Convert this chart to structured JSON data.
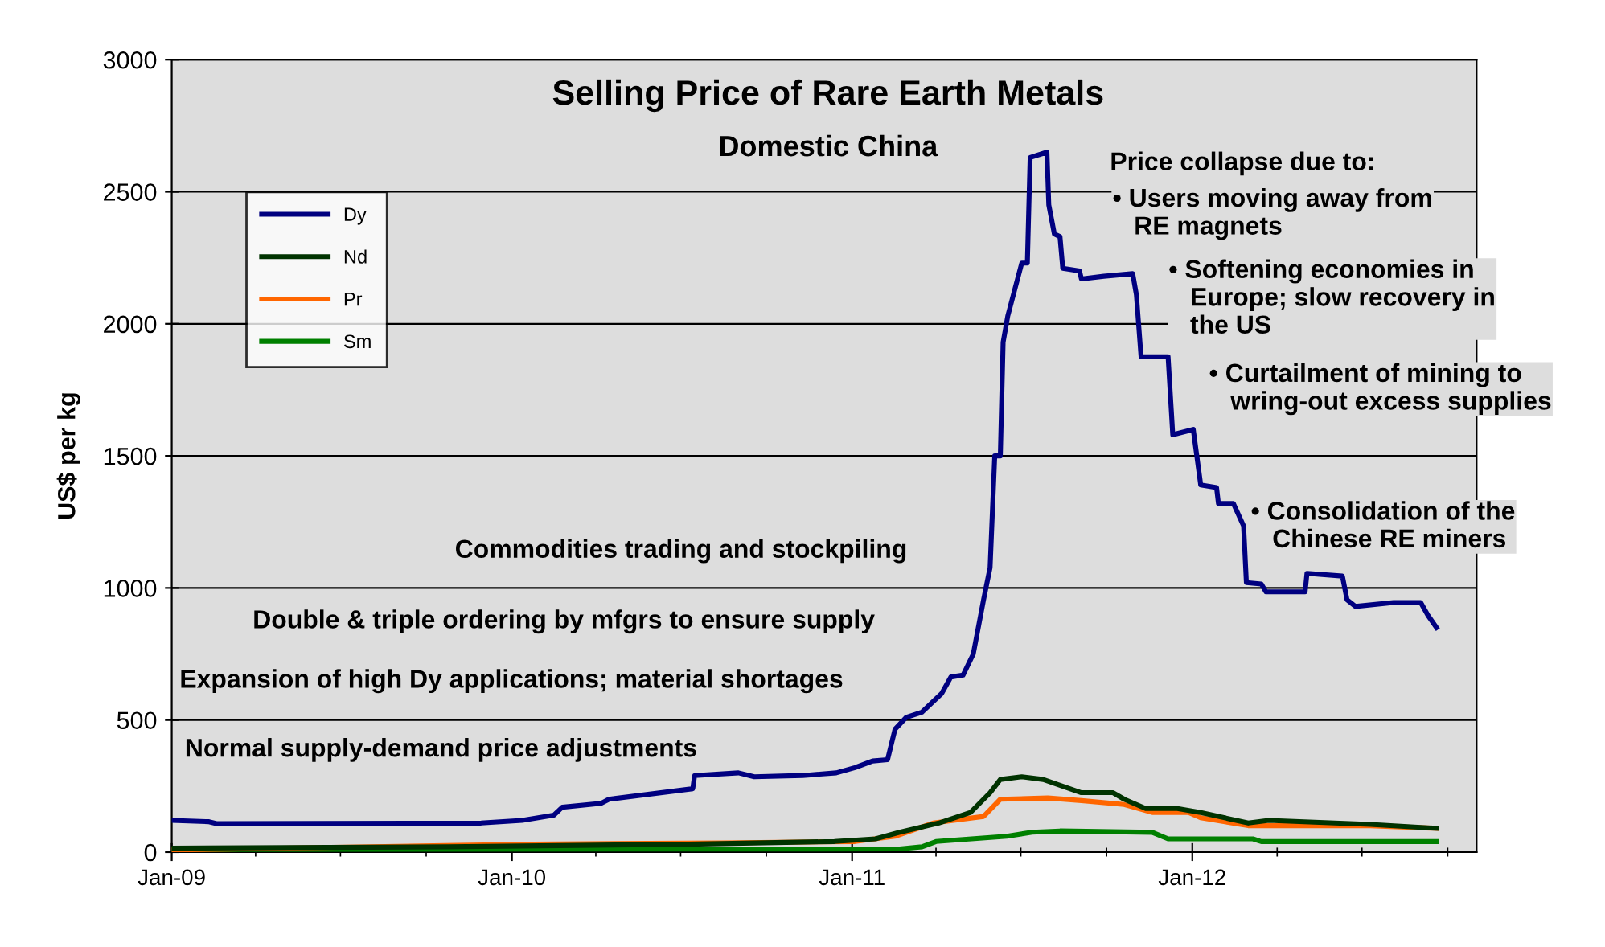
{
  "chart_data": {
    "type": "line",
    "title": "Selling Price of Rare Earth Metals",
    "subtitle": "Domestic China",
    "ylabel": "US$ per kg",
    "annotations": [
      "Price collapse due to:",
      "• Users moving away from\n   RE magnets",
      "• Softening economies in\n   Europe; slow recovery in\n   the US",
      "• Curtailment of mining to\n   wring-out excess supplies",
      "• Consolidation of the\n   Chinese RE miners",
      "Commodities trading and stockpiling",
      "Double & triple ordering by mfgrs to ensure supply",
      "Expansion of high Dy applications; material shortages",
      "Normal supply-demand price adjustments"
    ],
    "series": [
      {
        "name": "Dy",
        "color": "#000080",
        "x": [
          "2009-01-01",
          "2009-02-10",
          "2009-02-18",
          "2009-11-29",
          "2010-01-12",
          "2010-01-29",
          "2010-02-15",
          "2010-02-24",
          "2010-04-07",
          "2010-04-15",
          "2010-07-14",
          "2010-07-16",
          "2010-09-01",
          "2010-09-18",
          "2010-11-09",
          "2010-12-15",
          "2011-01-04",
          "2011-01-23",
          "2011-02-08",
          "2011-02-16",
          "2011-02-28",
          "2011-03-17",
          "2011-04-07",
          "2011-04-17",
          "2011-04-30",
          "2011-05-11",
          "2011-05-22",
          "2011-05-29",
          "2011-06-03",
          "2011-06-09",
          "2011-06-12",
          "2011-06-17",
          "2011-06-26",
          "2011-07-02",
          "2011-07-08",
          "2011-07-11",
          "2011-07-29",
          "2011-07-31",
          "2011-08-06",
          "2011-08-12",
          "2011-08-15",
          "2011-09-02",
          "2011-09-04",
          "2011-09-28",
          "2011-10-29",
          "2011-11-02",
          "2011-11-07",
          "2011-12-06",
          "2011-12-11",
          "2012-01-02",
          "2012-01-10",
          "2012-01-27",
          "2012-01-29",
          "2012-02-14",
          "2012-02-25",
          "2012-02-28",
          "2012-03-15",
          "2012-03-20",
          "2012-05-01",
          "2012-05-03",
          "2012-06-10",
          "2012-06-15",
          "2012-06-24",
          "2012-08-04",
          "2012-09-02",
          "2012-09-10",
          "2012-09-19"
        ],
        "values": [
          120,
          115,
          108,
          110,
          120,
          130,
          140,
          170,
          185,
          200,
          240,
          290,
          300,
          285,
          290,
          300,
          320,
          345,
          350,
          465,
          510,
          530,
          600,
          663,
          670,
          750,
          955,
          1077,
          1500,
          1500,
          1930,
          2030,
          2150,
          2230,
          2230,
          2630,
          2650,
          2450,
          2340,
          2330,
          2210,
          2200,
          2170,
          2180,
          2190,
          2110,
          1875,
          1875,
          1580,
          1600,
          1390,
          1380,
          1320,
          1320,
          1235,
          1020,
          1015,
          985,
          985,
          1055,
          1045,
          955,
          930,
          945,
          945,
          895,
          850
        ]
      },
      {
        "name": "Nd",
        "color": "#003300",
        "x": [
          "2009-01-01",
          "2009-10-25",
          "2010-07-10",
          "2010-12-13",
          "2011-01-26",
          "2011-02-21",
          "2011-04-04",
          "2011-05-08",
          "2011-05-29",
          "2011-06-09",
          "2011-07-02",
          "2011-07-25",
          "2011-09-04",
          "2011-10-08",
          "2011-10-20",
          "2011-11-12",
          "2011-12-16",
          "2012-01-10",
          "2012-03-01",
          "2012-03-23",
          "2012-07-10",
          "2012-09-19"
        ],
        "values": [
          15,
          20,
          30,
          40,
          50,
          75,
          110,
          150,
          225,
          275,
          285,
          275,
          225,
          225,
          200,
          165,
          165,
          150,
          110,
          120,
          105,
          90
        ]
      },
      {
        "name": "Pr",
        "color": "#ff6600",
        "x": [
          "2009-01-01",
          "2009-10-22",
          "2010-01-24",
          "2010-08-14",
          "2011-01-04",
          "2011-02-16",
          "2011-03-29",
          "2011-05-22",
          "2011-06-09",
          "2011-07-30",
          "2011-09-04",
          "2011-10-20",
          "2011-11-19",
          "2011-12-28",
          "2012-01-10",
          "2012-03-01",
          "2012-07-10",
          "2012-09-19"
        ],
        "values": [
          8,
          25,
          30,
          35,
          40,
          60,
          110,
          135,
          200,
          205,
          195,
          180,
          150,
          150,
          130,
          100,
          100,
          90
        ]
      },
      {
        "name": "Sm",
        "color": "#008000",
        "x": [
          "2009-01-01",
          "2011-02-21",
          "2011-03-17",
          "2011-04-01",
          "2011-06-16",
          "2011-07-13",
          "2011-08-12",
          "2011-11-19",
          "2011-12-06",
          "2012-03-06",
          "2012-03-15",
          "2012-09-19"
        ],
        "values": [
          10,
          12,
          20,
          40,
          60,
          75,
          80,
          75,
          50,
          50,
          40,
          40
        ]
      }
    ],
    "xlim": [
      "2009-01-01",
      "2012-11-01"
    ],
    "xticks": [
      {
        "value": "2009-01-01",
        "label": "Jan-09"
      },
      {
        "value": "2009-04-01",
        "label": null
      },
      {
        "value": "2009-07-01",
        "label": null
      },
      {
        "value": "2009-10-01",
        "label": null
      },
      {
        "value": "2010-01-01",
        "label": "Jan-10"
      },
      {
        "value": "2010-04-01",
        "label": null
      },
      {
        "value": "2010-07-01",
        "label": null
      },
      {
        "value": "2010-10-01",
        "label": null
      },
      {
        "value": "2011-01-01",
        "label": "Jan-11"
      },
      {
        "value": "2011-04-01",
        "label": null
      },
      {
        "value": "2011-07-01",
        "label": null
      },
      {
        "value": "2011-10-01",
        "label": null
      },
      {
        "value": "2012-01-01",
        "label": "Jan-12"
      },
      {
        "value": "2012-04-01",
        "label": null
      },
      {
        "value": "2012-07-01",
        "label": null
      },
      {
        "value": "2012-10-01",
        "label": null
      }
    ],
    "ylim": [
      0,
      3000
    ],
    "yticks": [
      0,
      500,
      1000,
      1500,
      2000,
      2500,
      3000
    ],
    "grid": "y",
    "legend": "top left",
    "line_style": "solid",
    "marker": "none"
  }
}
